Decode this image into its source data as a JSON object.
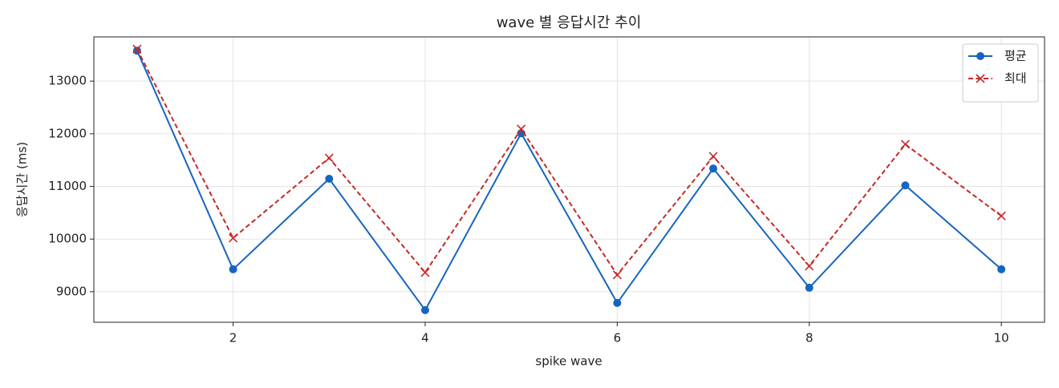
{
  "chart_data": {
    "type": "line",
    "title": "wave 별 응답시간 추이",
    "xlabel": "spike wave",
    "ylabel": "응답시간 (ms)",
    "x": [
      1,
      2,
      3,
      4,
      5,
      6,
      7,
      8,
      9,
      10
    ],
    "series": [
      {
        "name": "평균",
        "color": "#1565c0",
        "marker": "circle",
        "dash": "solid",
        "values": [
          13578,
          9426,
          11145,
          8650,
          12010,
          8787,
          11340,
          9076,
          11020,
          9426
        ]
      },
      {
        "name": "최대",
        "color": "#c62828",
        "marker": "cross",
        "dash": "dashed",
        "values": [
          13608,
          10020,
          11540,
          9365,
          12090,
          9320,
          11570,
          9487,
          11800,
          10440
        ]
      }
    ],
    "xlim": [
      0.55,
      10.45
    ],
    "xticks": [
      2,
      4,
      6,
      8,
      10
    ],
    "ylim": [
      8420,
      13840
    ],
    "yticks": [
      9000,
      10000,
      11000,
      12000,
      13000
    ],
    "grid": true,
    "legend": "upper right"
  }
}
